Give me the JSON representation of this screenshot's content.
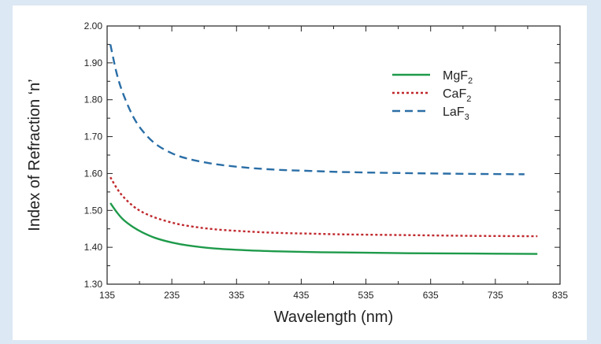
{
  "chart_data": {
    "type": "line",
    "xlabel": "Wavelength (nm)",
    "ylabel": "Index of Refraction ‘n’",
    "xlim": [
      135,
      835
    ],
    "ylim": [
      1.3,
      2.0
    ],
    "x_ticks": [
      "135",
      "235",
      "335",
      "435",
      "535",
      "635",
      "735",
      "835"
    ],
    "y_ticks": [
      "1.30",
      "1.40",
      "1.50",
      "1.60",
      "1.70",
      "1.80",
      "1.90",
      "2.00"
    ],
    "legend_position": "top-right",
    "series": [
      {
        "name_base": "MgF",
        "name_sub": "2",
        "color": "#1e9a4a",
        "dash": "solid",
        "x": [
          140,
          150,
          160,
          175,
          190,
          210,
          235,
          260,
          300,
          350,
          400,
          450,
          500,
          600,
          700,
          800
        ],
        "y": [
          1.52,
          1.495,
          1.475,
          1.455,
          1.44,
          1.425,
          1.413,
          1.405,
          1.397,
          1.392,
          1.389,
          1.387,
          1.386,
          1.384,
          1.383,
          1.382
        ]
      },
      {
        "name_base": "CaF",
        "name_sub": "2",
        "color": "#c0282d",
        "dash": "dotted",
        "x": [
          140,
          150,
          160,
          175,
          190,
          210,
          235,
          260,
          300,
          350,
          400,
          450,
          500,
          600,
          700,
          800
        ],
        "y": [
          1.59,
          1.56,
          1.537,
          1.512,
          1.495,
          1.48,
          1.467,
          1.458,
          1.449,
          1.443,
          1.439,
          1.437,
          1.435,
          1.433,
          1.431,
          1.43
        ]
      },
      {
        "name_base": "LaF",
        "name_sub": "3",
        "color": "#2a6ea6",
        "dash": "dashed",
        "x": [
          140,
          150,
          160,
          175,
          190,
          210,
          235,
          260,
          300,
          350,
          400,
          450,
          500,
          600,
          700,
          780
        ],
        "y": [
          1.95,
          1.87,
          1.815,
          1.755,
          1.715,
          1.68,
          1.655,
          1.64,
          1.626,
          1.616,
          1.61,
          1.607,
          1.604,
          1.601,
          1.599,
          1.598
        ]
      }
    ]
  }
}
